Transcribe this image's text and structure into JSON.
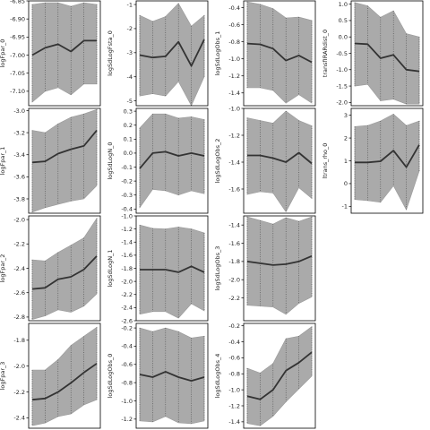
{
  "chart_data": [
    {
      "type": "area",
      "ylabel": "logFpar_0",
      "ylim": [
        -7.14,
        -6.85
      ],
      "yticks": [
        "-6.85",
        "-6.90",
        "-6.95",
        "-7.00",
        "-7.05",
        "-7.10"
      ],
      "ytick_values": [
        -6.85,
        -6.9,
        -6.95,
        -7.0,
        -7.05,
        -7.1
      ],
      "mean": [
        -7.0,
        -6.98,
        -6.97,
        -6.99,
        -6.96,
        -6.96
      ],
      "lower": [
        -7.13,
        -7.1,
        -7.09,
        -7.11,
        -7.08,
        -7.08
      ],
      "upper": [
        -6.86,
        -6.855,
        -6.855,
        -6.865,
        -6.855,
        -6.86
      ]
    },
    {
      "type": "area",
      "ylabel": "logSdLogFsta_0",
      "ylim": [
        -5.2,
        -0.85
      ],
      "yticks": [
        "-1",
        "-2",
        "-3",
        "-4",
        "-5"
      ],
      "ytick_values": [
        -1,
        -2,
        -3,
        -4,
        -5
      ],
      "mean": [
        -3.1,
        -3.2,
        -3.15,
        -2.55,
        -3.55,
        -2.45
      ],
      "lower": [
        -4.8,
        -4.7,
        -4.8,
        -4.2,
        -5.2,
        -4.0
      ],
      "upper": [
        -1.45,
        -1.7,
        -1.5,
        -0.95,
        -1.9,
        -1.45
      ]
    },
    {
      "type": "area",
      "ylabel": "logSdLogObs_1",
      "ylim": [
        -1.55,
        -0.32
      ],
      "yticks": [
        "-0.4",
        "-0.6",
        "-0.8",
        "-1.0",
        "-1.2",
        "-1.4"
      ],
      "ytick_values": [
        -0.4,
        -0.6,
        -0.8,
        -1.0,
        -1.2,
        -1.4
      ],
      "mean": [
        -0.82,
        -0.83,
        -0.88,
        -1.02,
        -0.96,
        -1.04
      ],
      "lower": [
        -1.34,
        -1.34,
        -1.37,
        -1.52,
        -1.42,
        -1.52
      ],
      "upper": [
        -0.33,
        -0.36,
        -0.41,
        -0.52,
        -0.51,
        -0.55
      ]
    },
    {
      "type": "area",
      "ylabel": "transfIRARdist_0",
      "ylim": [
        -2.1,
        1.1
      ],
      "yticks": [
        "1.0",
        "0.5",
        "0.0",
        "-0.5",
        "-1.0",
        "-1.5",
        "-2.0"
      ],
      "ytick_values": [
        1.0,
        0.5,
        0.0,
        -0.5,
        -1.0,
        -1.5,
        -2.0
      ],
      "mean": [
        -0.2,
        -0.22,
        -0.65,
        -0.55,
        -1.0,
        -1.05
      ],
      "lower": [
        -1.5,
        -1.45,
        -1.95,
        -1.9,
        -2.05,
        -2.05
      ],
      "upper": [
        1.05,
        0.95,
        0.6,
        0.8,
        0.1,
        0.0
      ]
    },
    {
      "type": "area",
      "ylabel": "logFpar_1",
      "ylim": [
        -3.93,
        -2.98
      ],
      "yticks": [
        "-3.0",
        "-3.2",
        "-3.4",
        "-3.6",
        "-3.8"
      ],
      "ytick_values": [
        -3.0,
        -3.2,
        -3.4,
        -3.6,
        -3.8
      ],
      "mean": [
        -3.47,
        -3.46,
        -3.39,
        -3.35,
        -3.32,
        -3.18
      ],
      "lower": [
        -3.92,
        -3.88,
        -3.85,
        -3.82,
        -3.8,
        -3.68
      ],
      "upper": [
        -3.18,
        -3.2,
        -3.12,
        -3.06,
        -3.03,
        -2.99
      ]
    },
    {
      "type": "area",
      "ylabel": "logSdLogN_0",
      "ylim": [
        -0.43,
        0.32
      ],
      "yticks": [
        "0.3",
        "0.2",
        "0.1",
        "0.0",
        "-0.1",
        "-0.2",
        "-0.3",
        "-0.4"
      ],
      "ytick_values": [
        0.3,
        0.2,
        0.1,
        0.0,
        -0.1,
        -0.2,
        -0.3,
        -0.4
      ],
      "mean": [
        -0.11,
        0.0,
        0.01,
        -0.02,
        0.0,
        -0.02
      ],
      "lower": [
        -0.39,
        -0.26,
        -0.27,
        -0.3,
        -0.27,
        -0.29
      ],
      "upper": [
        0.18,
        0.28,
        0.28,
        0.25,
        0.26,
        0.24
      ]
    },
    {
      "type": "area",
      "ylabel": "logSdLogObs_2",
      "ylim": [
        -1.78,
        -1.0
      ],
      "yticks": [
        "-1.0",
        "-1.2",
        "-1.4",
        "-1.6"
      ],
      "ytick_values": [
        -1.0,
        -1.2,
        -1.4,
        -1.6
      ],
      "mean": [
        -1.35,
        -1.35,
        -1.37,
        -1.4,
        -1.33,
        -1.41
      ],
      "lower": [
        -1.64,
        -1.62,
        -1.63,
        -1.77,
        -1.59,
        -1.67
      ],
      "upper": [
        -1.07,
        -1.09,
        -1.11,
        -1.02,
        -1.09,
        -1.13
      ]
    },
    {
      "type": "area",
      "ylabel": "ltrans_rho_0",
      "ylim": [
        -1.3,
        3.3
      ],
      "yticks": [
        "3",
        "2",
        "1",
        "0",
        "-1"
      ],
      "ytick_values": [
        3,
        2,
        1,
        0,
        -1
      ],
      "mean": [
        0.93,
        0.93,
        0.98,
        1.45,
        0.72,
        1.7
      ],
      "lower": [
        -0.7,
        -0.75,
        -0.82,
        -0.1,
        -1.15,
        0.55
      ],
      "upper": [
        2.5,
        2.55,
        2.75,
        3.05,
        2.55,
        2.75
      ]
    },
    {
      "type": "area",
      "ylabel": "logFpar_2",
      "ylim": [
        -2.83,
        -1.97
      ],
      "yticks": [
        "-2.0",
        "-2.2",
        "-2.4",
        "-2.6",
        "-2.8"
      ],
      "ytick_values": [
        -2.0,
        -2.2,
        -2.4,
        -2.6,
        -2.8
      ],
      "mean": [
        -2.57,
        -2.56,
        -2.49,
        -2.47,
        -2.41,
        -2.3
      ],
      "lower": [
        -2.82,
        -2.79,
        -2.74,
        -2.76,
        -2.71,
        -2.61
      ],
      "upper": [
        -2.33,
        -2.34,
        -2.27,
        -2.21,
        -2.15,
        -1.99
      ]
    },
    {
      "type": "area",
      "ylabel": "logSdLogN_1",
      "ylim": [
        -2.6,
        -1.0
      ],
      "yticks": [
        "-1.0",
        "-1.2",
        "-1.4",
        "-1.6",
        "-1.8",
        "-2.0",
        "-2.2",
        "-2.4",
        "-2.6"
      ],
      "ytick_values": [
        -1.0,
        -1.2,
        -1.4,
        -1.6,
        -1.8,
        -2.0,
        -2.2,
        -2.4,
        -2.6
      ],
      "mean": [
        -1.82,
        -1.82,
        -1.82,
        -1.86,
        -1.77,
        -1.86
      ],
      "lower": [
        -2.5,
        -2.46,
        -2.46,
        -2.56,
        -2.34,
        -2.45
      ],
      "upper": [
        -1.14,
        -1.19,
        -1.2,
        -1.17,
        -1.2,
        -1.26
      ]
    },
    {
      "type": "area",
      "ylabel": "logSdLogObs_3",
      "ylim": [
        -2.45,
        -1.3
      ],
      "yticks": [
        "-1.4",
        "-1.6",
        "-1.8",
        "-2.0",
        "-2.2"
      ],
      "ytick_values": [
        -1.4,
        -1.6,
        -1.8,
        -2.0,
        -2.2
      ],
      "mean": [
        -1.8,
        -1.82,
        -1.84,
        -1.83,
        -1.8,
        -1.74
      ],
      "lower": [
        -2.28,
        -2.29,
        -2.3,
        -2.38,
        -2.26,
        -2.19
      ],
      "upper": [
        -1.31,
        -1.35,
        -1.39,
        -1.32,
        -1.36,
        -1.31
      ]
    },
    {
      "type": "area",
      "ylabel": "logFpar_3",
      "ylim": [
        -2.48,
        -1.67
      ],
      "yticks": [
        "-1.8",
        "-2.0",
        "-2.2",
        "-2.4"
      ],
      "ytick_values": [
        -1.8,
        -2.0,
        -2.2,
        -2.4
      ],
      "mean": [
        -2.26,
        -2.25,
        -2.2,
        -2.13,
        -2.05,
        -1.98
      ],
      "lower": [
        -2.46,
        -2.44,
        -2.39,
        -2.37,
        -2.3,
        -2.26
      ],
      "upper": [
        -2.03,
        -2.03,
        -1.95,
        -1.84,
        -1.77,
        -1.7
      ]
    },
    {
      "type": "area",
      "ylabel": "logSdLogObs_0",
      "ylim": [
        -1.3,
        -0.15
      ],
      "yticks": [
        "-0.2",
        "-0.4",
        "-0.6",
        "-0.8",
        "-1.0",
        "-1.2"
      ],
      "ytick_values": [
        -0.2,
        -0.4,
        -0.6,
        -0.8,
        -1.0,
        -1.2
      ],
      "mean": [
        -0.71,
        -0.74,
        -0.68,
        -0.74,
        -0.78,
        -0.74
      ],
      "lower": [
        -1.22,
        -1.23,
        -1.17,
        -1.24,
        -1.25,
        -1.22
      ],
      "upper": [
        -0.2,
        -0.24,
        -0.2,
        -0.24,
        -0.31,
        -0.29
      ]
    },
    {
      "type": "area",
      "ylabel": "logSdLogObs_4",
      "ylim": [
        -1.48,
        -0.17
      ],
      "yticks": [
        "-0.2",
        "-0.4",
        "-0.6",
        "-0.8",
        "-1.0",
        "-1.2",
        "-1.4"
      ],
      "ytick_values": [
        -0.2,
        -0.4,
        -0.6,
        -0.8,
        -1.0,
        -1.2,
        -1.4
      ],
      "mean": [
        -1.08,
        -1.12,
        -1.0,
        -0.76,
        -0.66,
        -0.53
      ],
      "lower": [
        -1.42,
        -1.45,
        -1.33,
        -1.15,
        -0.99,
        -0.83
      ],
      "upper": [
        -0.73,
        -0.79,
        -0.67,
        -0.36,
        -0.33,
        -0.21
      ]
    }
  ]
}
